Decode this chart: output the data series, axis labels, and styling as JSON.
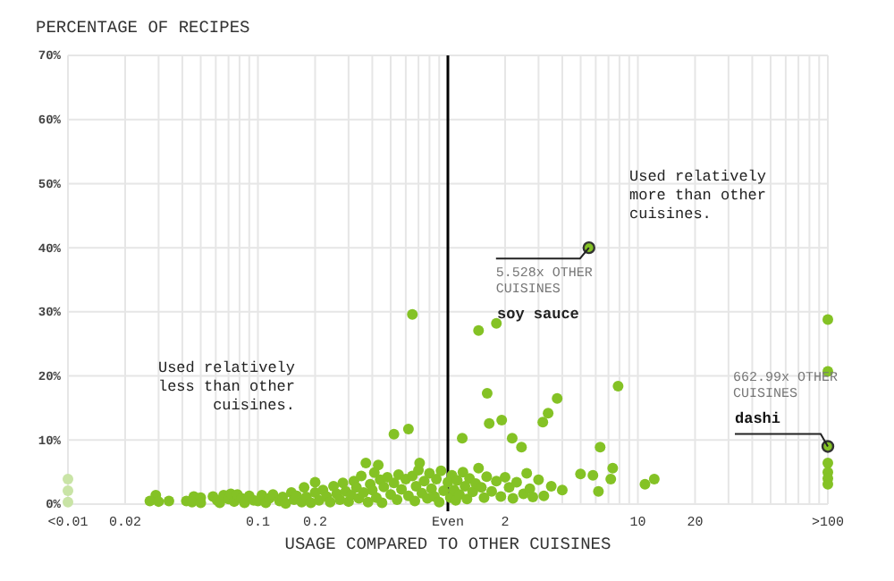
{
  "chart_data": {
    "type": "scatter",
    "title": "PERCENTAGE OF RECIPES",
    "xlabel": "USAGE COMPARED TO OTHER CUISINES",
    "log": "x",
    "grid": true,
    "marker": "circle",
    "xlim": [
      0.01,
      100
    ],
    "ylim": [
      0,
      70
    ],
    "xticks": [
      {
        "value": 0.01,
        "label": "<0.01"
      },
      0.02,
      {
        "value": 0.03,
        "label": null
      },
      {
        "value": 0.04,
        "label": null
      },
      {
        "value": 0.05,
        "label": null
      },
      {
        "value": 0.06,
        "label": null
      },
      {
        "value": 0.07,
        "label": null
      },
      {
        "value": 0.08,
        "label": null
      },
      {
        "value": 0.09,
        "label": null
      },
      0.1,
      0.2,
      {
        "value": 0.3,
        "label": null
      },
      {
        "value": 0.4,
        "label": null
      },
      {
        "value": 0.5,
        "label": null
      },
      {
        "value": 0.6,
        "label": null
      },
      {
        "value": 0.7,
        "label": null
      },
      {
        "value": 0.8,
        "label": null
      },
      {
        "value": 0.9,
        "label": null
      },
      {
        "value": 1,
        "label": "Even"
      },
      2,
      {
        "value": 3,
        "label": null
      },
      {
        "value": 4,
        "label": null
      },
      {
        "value": 5,
        "label": null
      },
      {
        "value": 6,
        "label": null
      },
      {
        "value": 7,
        "label": null
      },
      {
        "value": 8,
        "label": null
      },
      {
        "value": 9,
        "label": null
      },
      10,
      20,
      {
        "value": 30,
        "label": null
      },
      {
        "value": 40,
        "label": null
      },
      {
        "value": 50,
        "label": null
      },
      {
        "value": 60,
        "label": null
      },
      {
        "value": 70,
        "label": null
      },
      {
        "value": 80,
        "label": null
      },
      {
        "value": 90,
        "label": null
      },
      {
        "value": 100,
        "label": ">100"
      }
    ],
    "yticks": [
      {
        "value": 0,
        "label": "0%"
      },
      {
        "value": 10,
        "label": "10%"
      },
      {
        "value": 20,
        "label": "20%"
      },
      {
        "value": 30,
        "label": "30%"
      },
      {
        "value": 40,
        "label": "40%"
      },
      {
        "value": 50,
        "label": "50%"
      },
      {
        "value": 60,
        "label": "60%"
      },
      {
        "value": 70,
        "label": "70%"
      }
    ],
    "ref_lines": [
      {
        "axis": "x",
        "value": 1,
        "color": "#000000"
      }
    ],
    "series": [
      {
        "color": "#c9e4a6",
        "x": [
          0.01,
          0.01,
          0.01
        ],
        "values": [
          3.9,
          2.1,
          0.3
        ]
      },
      {
        "color": "#84c225",
        "x": [
          0.029,
          0.027,
          0.03,
          0.034,
          0.042,
          0.046,
          0.05,
          0.045,
          0.05,
          0.058,
          0.061,
          0.063,
          0.066,
          0.07,
          0.072,
          0.075,
          0.078,
          0.082,
          0.085,
          0.09,
          0.095,
          0.1,
          0.105,
          0.11,
          0.115,
          0.12,
          0.13,
          0.135,
          0.14,
          0.15,
          0.155,
          0.16,
          0.17,
          0.175,
          0.18,
          0.19,
          0.2,
          0.2,
          0.21,
          0.22,
          0.23,
          0.24,
          0.25,
          0.26,
          0.27,
          0.28,
          0.29,
          0.3,
          0.31,
          0.32,
          0.33,
          0.34,
          0.35,
          0.36,
          0.37,
          0.38,
          0.39,
          0.4,
          0.41,
          0.42,
          0.43,
          0.44,
          0.45,
          0.46,
          0.48,
          0.5,
          0.52,
          0.52,
          0.54,
          0.55,
          0.57,
          0.6,
          0.62,
          0.62,
          0.65,
          0.65,
          0.67,
          0.68,
          0.7,
          0.71,
          0.73,
          0.75,
          0.78,
          0.8,
          0.82,
          0.85,
          0.87,
          0.9,
          0.92,
          0.95,
          1.0,
          1.03,
          1.05,
          1.08,
          1.1,
          1.12,
          1.15,
          1.19,
          1.2,
          1.23,
          1.26,
          1.3,
          1.35,
          1.4,
          1.45,
          1.45,
          1.5,
          1.55,
          1.6,
          1.61,
          1.65,
          1.7,
          1.8,
          1.8,
          1.9,
          1.92,
          2.0,
          2.1,
          2.18,
          2.2,
          2.3,
          2.44,
          2.5,
          2.6,
          2.7,
          2.8,
          3.0,
          3.16,
          3.2,
          3.37,
          3.5,
          3.76,
          4.0,
          4.99,
          5.8,
          6.2,
          6.33,
          7.2,
          7.37,
          7.87,
          10.9,
          12.2,
          100,
          100,
          100,
          100,
          100,
          100
        ],
        "values": [
          1.4,
          0.5,
          0.4,
          0.5,
          0.5,
          1.2,
          1.0,
          0.3,
          0.2,
          1.2,
          0.6,
          0.2,
          1.4,
          0.8,
          1.6,
          0.4,
          1.5,
          0.9,
          0.2,
          1.3,
          0.6,
          0.5,
          1.4,
          0.2,
          0.9,
          1.5,
          0.5,
          1.1,
          0.1,
          1.8,
          0.7,
          1.3,
          0.3,
          2.6,
          1.1,
          0.2,
          1.8,
          3.4,
          0.6,
          2.2,
          1.2,
          0.3,
          2.8,
          1.6,
          0.7,
          3.3,
          2.0,
          0.4,
          1.4,
          3.6,
          2.6,
          0.9,
          4.4,
          1.8,
          6.4,
          0.3,
          3.1,
          2.2,
          4.9,
          1.0,
          6.1,
          3.8,
          0.2,
          2.7,
          4.2,
          1.5,
          10.9,
          3.3,
          0.7,
          4.6,
          2.3,
          3.9,
          11.7,
          1.3,
          29.6,
          4.4,
          0.5,
          2.8,
          5.3,
          6.4,
          1.7,
          3.6,
          0.9,
          4.8,
          2.4,
          1.2,
          3.9,
          0.3,
          5.2,
          2.1,
          3.4,
          1.0,
          4.5,
          2.2,
          0.6,
          3.7,
          1.5,
          10.3,
          5.0,
          2.8,
          0.8,
          4.0,
          1.9,
          3.2,
          27.1,
          5.6,
          2.6,
          1.0,
          4.3,
          17.3,
          12.6,
          2.0,
          28.2,
          3.6,
          1.2,
          13.1,
          4.2,
          2.6,
          10.3,
          0.9,
          3.4,
          8.9,
          1.6,
          4.8,
          2.4,
          1.1,
          3.8,
          12.8,
          1.3,
          14.2,
          2.8,
          16.5,
          2.2,
          4.7,
          4.5,
          2.0,
          8.9,
          3.9,
          5.6,
          18.4,
          3.1,
          3.9,
          28.8,
          20.7,
          6.4,
          5.0,
          4.0,
          3.1
        ]
      },
      {
        "color": "#84c225",
        "x": [
          5.528,
          100
        ],
        "values": [
          40,
          9
        ]
      }
    ],
    "annotations": [
      "Used relatively less than other cuisines.",
      "Used relatively more than other cuisines.",
      "soy sauce",
      "662.99x OTHER CUISINES",
      {
        "text": "5.528x OTHER CUISINES",
        "x": 5.528,
        "y": 40
      },
      {
        "text": "dashi",
        "x": 100,
        "y": 9
      }
    ]
  }
}
